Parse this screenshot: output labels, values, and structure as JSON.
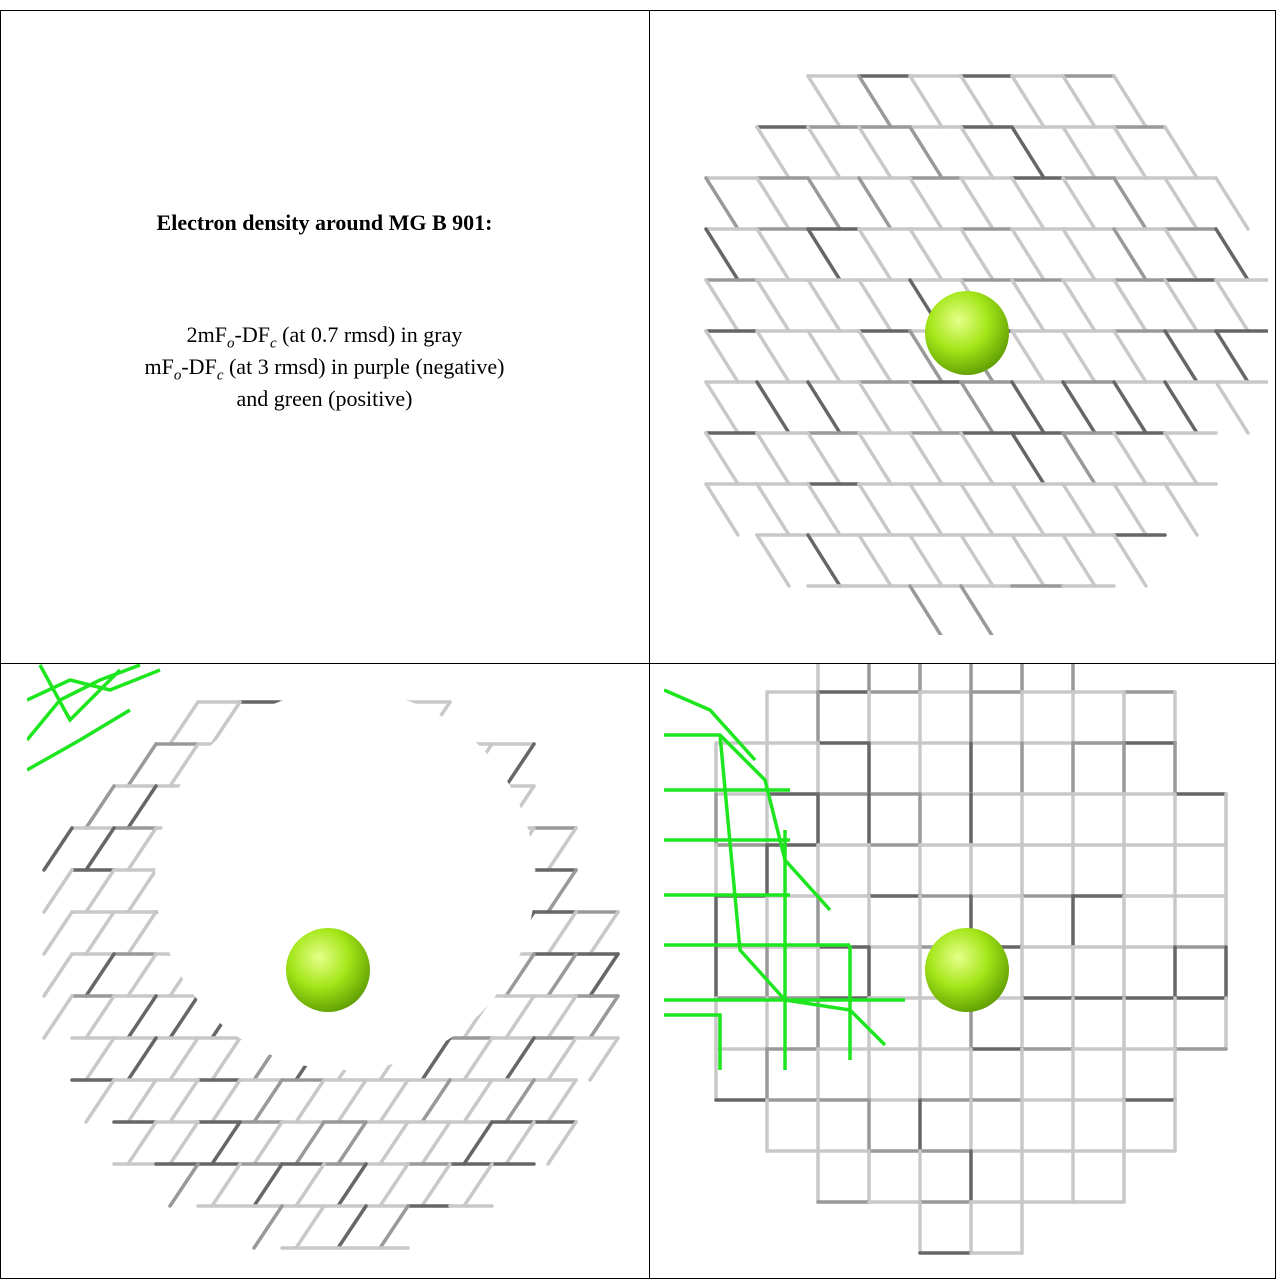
{
  "title": "Electron density around MG B 901:",
  "caption": [
    [
      "2mF",
      "o",
      "-DF",
      "c",
      " (at 0.7 rmsd) in gray"
    ],
    [
      "mF",
      "o",
      "-DF",
      "c",
      " (at 3 rmsd) in purple (negative)"
    ],
    [
      "and green (positive)"
    ]
  ]
}
